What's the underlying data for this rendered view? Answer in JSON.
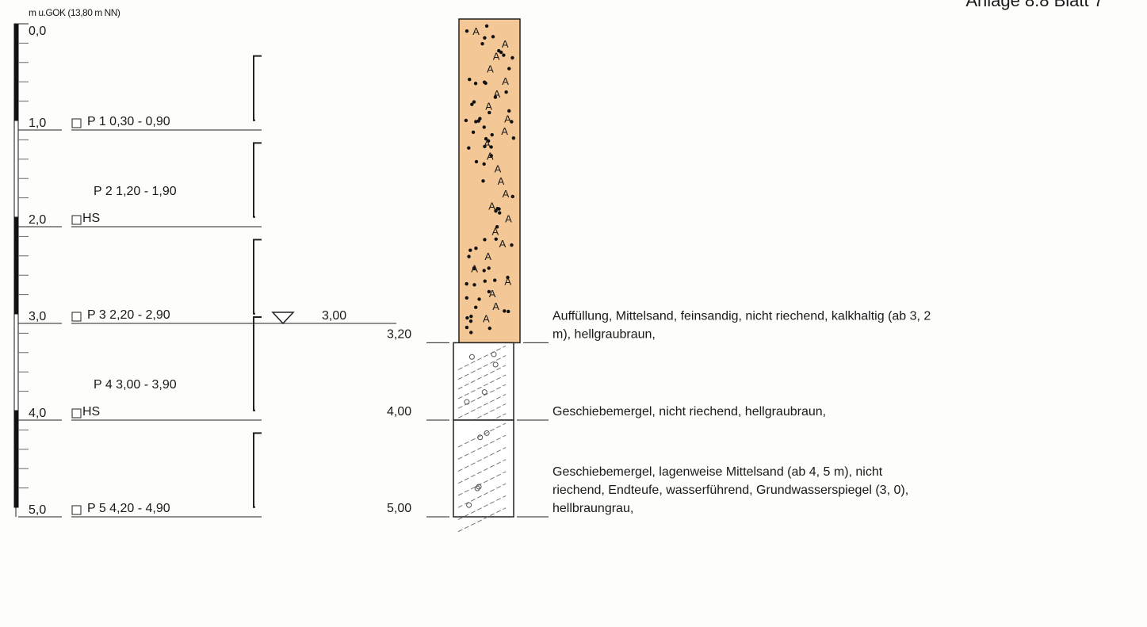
{
  "header": {
    "scale_unit": "m u.GOK (13,80 m NN)",
    "top_center_fragment": "",
    "top_right_fragment": "Anlage 8.8 Blatt 7"
  },
  "scale": {
    "max_depth": 5.0,
    "major_ticks": [
      "0,0",
      "1,0",
      "2,0",
      "3,0",
      "4,0",
      "5,0"
    ]
  },
  "samples": [
    {
      "line1": "P 1  0,30 - 0,90",
      "line2": "",
      "from": 0.3,
      "to": 0.9
    },
    {
      "line1": "P 2  1,20 - 1,90",
      "line2": "HS",
      "from": 1.2,
      "to": 1.9
    },
    {
      "line1": "P 3  2,20 - 2,90",
      "line2": "",
      "from": 2.2,
      "to": 2.9
    },
    {
      "line1": "P 4  3,00 - 3,90",
      "line2": "HS",
      "from": 3.0,
      "to": 3.9
    },
    {
      "line1": "P 5  4,20 - 4,90",
      "line2": "",
      "from": 4.2,
      "to": 4.9
    }
  ],
  "groundwater": {
    "depth": 3.0,
    "label": "3,00"
  },
  "layers": [
    {
      "top": 0.0,
      "bottom": 3.2,
      "bottom_label": "3,20",
      "fill": "#f4c896",
      "pattern": "fill-sand",
      "description": [
        "Auffüllung, Mittelsand, feinsandig, nicht riechend, kalkhaltig (ab 3, 2",
        "m), hellgraubraun,"
      ]
    },
    {
      "top": 3.2,
      "bottom": 4.0,
      "bottom_label": "4,00",
      "fill": "#ffffff",
      "pattern": "marl",
      "description": [
        "Geschiebemergel, nicht riechend, hellgraubraun,"
      ]
    },
    {
      "top": 4.0,
      "bottom": 5.0,
      "bottom_label": "5,00",
      "fill": "#ffffff",
      "pattern": "marl",
      "description": [
        "Geschiebemergel, lagenweise Mittelsand (ab 4, 5 m), nicht",
        "riechend, Endteufe, wasserführend, Grundwasserspiegel (3, 0),",
        "hellbraungrau,"
      ]
    }
  ]
}
